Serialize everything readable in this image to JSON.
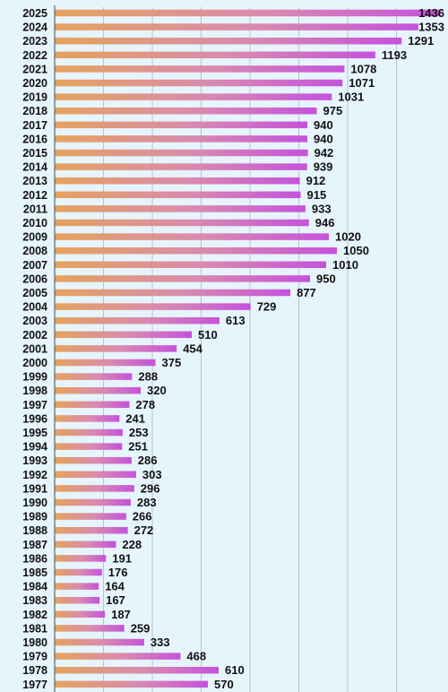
{
  "chart_data": {
    "type": "bar",
    "orientation": "horizontal",
    "categories": [
      "2025",
      "2024",
      "2023",
      "2022",
      "2021",
      "2020",
      "2019",
      "2018",
      "2017",
      "2016",
      "2015",
      "2014",
      "2013",
      "2012",
      "2011",
      "2010",
      "2009",
      "2008",
      "2007",
      "2006",
      "2005",
      "2004",
      "2003",
      "2002",
      "2001",
      "2000",
      "1999",
      "1998",
      "1997",
      "1996",
      "1995",
      "1994",
      "1993",
      "1992",
      "1991",
      "1990",
      "1989",
      "1988",
      "1987",
      "1986",
      "1985",
      "1984",
      "1983",
      "1982",
      "1981",
      "1980",
      "1979",
      "1978",
      "1977"
    ],
    "values": [
      1436,
      1353,
      1291,
      1193,
      1078,
      1071,
      1031,
      975,
      940,
      940,
      942,
      939,
      912,
      915,
      933,
      946,
      1020,
      1050,
      1010,
      950,
      877,
      729,
      613,
      510,
      454,
      375,
      288,
      320,
      278,
      241,
      253,
      251,
      286,
      303,
      296,
      283,
      266,
      272,
      228,
      191,
      176,
      164,
      167,
      187,
      259,
      333,
      468,
      610,
      570
    ],
    "xlim": [
      0,
      1450
    ],
    "grid": true,
    "colors": {
      "bar_start": "#e5a35c",
      "bar_end": "#c652dc",
      "grid": "#b8c4cc",
      "axis": "#666666",
      "background": "#e6f4fc"
    }
  }
}
